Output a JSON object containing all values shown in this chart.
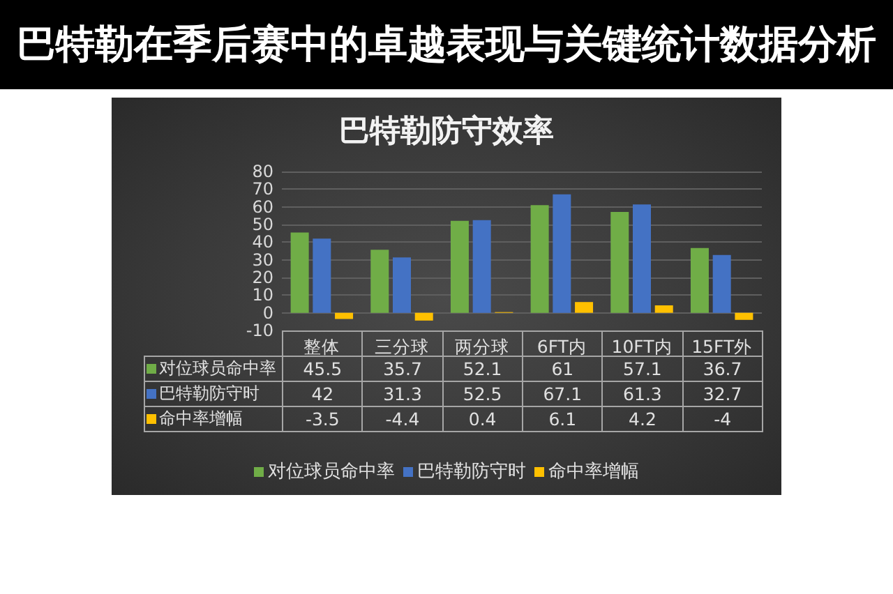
{
  "chart_data": {
    "type": "bar",
    "title": "巴特勒防守效率",
    "categories": [
      "整体",
      "三分球",
      "两分球",
      "6FT内",
      "10FT内",
      "15FT外"
    ],
    "series": [
      {
        "name": "对位球员命中率",
        "color": "#70ad47",
        "values": [
          45.5,
          35.7,
          52.1,
          61,
          57.1,
          36.7
        ]
      },
      {
        "name": "巴特勒防守时",
        "color": "#4472c4",
        "values": [
          42,
          31.3,
          52.5,
          67.1,
          61.3,
          32.7
        ]
      },
      {
        "name": "命中率增幅",
        "color": "#ffc000",
        "values": [
          -3.5,
          -4.4,
          0.4,
          6.1,
          4.2,
          -4
        ]
      }
    ],
    "ylim": [
      -10,
      80
    ],
    "yticks": [
      -10,
      0,
      10,
      20,
      30,
      40,
      50,
      60,
      70,
      80
    ],
    "grid": "y",
    "legend": "bottom",
    "data_labels": true,
    "annotations": [
      "巴特勒在季后赛中的卓越表现与关键统计数据分析"
    ]
  }
}
